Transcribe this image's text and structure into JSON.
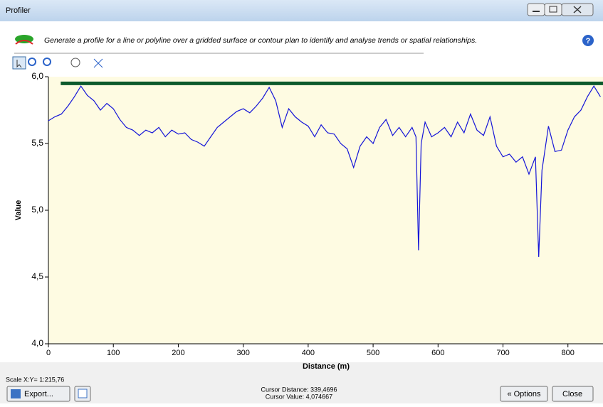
{
  "window": {
    "title": "Profiler"
  },
  "description": "Generate a profile for a line or polyline over a gridded surface or contour plan to identify and analyse trends or spatial relationships.",
  "chart_data": {
    "type": "line",
    "xlabel": "Distance (m)",
    "ylabel": "Value",
    "x": [
      0,
      10,
      20,
      30,
      40,
      50,
      60,
      70,
      80,
      90,
      100,
      110,
      120,
      130,
      140,
      150,
      160,
      170,
      180,
      190,
      200,
      210,
      220,
      230,
      240,
      250,
      260,
      270,
      280,
      290,
      300,
      310,
      320,
      330,
      340,
      350,
      360,
      370,
      380,
      390,
      400,
      410,
      420,
      430,
      440,
      450,
      460,
      470,
      480,
      490,
      500,
      510,
      520,
      530,
      540,
      550,
      560,
      566,
      570,
      574,
      580,
      590,
      600,
      610,
      620,
      630,
      640,
      650,
      660,
      670,
      680,
      690,
      700,
      710,
      720,
      730,
      740,
      750,
      755,
      760,
      770,
      780,
      790,
      800,
      810,
      820,
      830,
      840,
      850
    ],
    "values": [
      5.67,
      5.7,
      5.72,
      5.78,
      5.85,
      5.93,
      5.86,
      5.82,
      5.75,
      5.8,
      5.76,
      5.68,
      5.62,
      5.6,
      5.56,
      5.6,
      5.58,
      5.62,
      5.55,
      5.6,
      5.57,
      5.58,
      5.53,
      5.51,
      5.48,
      5.55,
      5.62,
      5.66,
      5.7,
      5.74,
      5.76,
      5.73,
      5.78,
      5.84,
      5.92,
      5.82,
      5.62,
      5.76,
      5.7,
      5.66,
      5.63,
      5.55,
      5.64,
      5.58,
      5.57,
      5.5,
      5.46,
      5.32,
      5.48,
      5.55,
      5.5,
      5.62,
      5.68,
      5.56,
      5.62,
      5.55,
      5.62,
      5.55,
      4.7,
      5.5,
      5.66,
      5.55,
      5.58,
      5.62,
      5.55,
      5.66,
      5.58,
      5.72,
      5.6,
      5.56,
      5.7,
      5.48,
      5.4,
      5.42,
      5.36,
      5.4,
      5.27,
      5.4,
      4.65,
      5.3,
      5.63,
      5.44,
      5.45,
      5.6,
      5.7,
      5.75,
      5.85,
      5.93,
      5.85
    ],
    "color": "#1515d8",
    "reference_line": {
      "y": 5.95,
      "x": [
        19,
        854
      ],
      "color": "#0d5a2c"
    },
    "xlim": [
      0,
      854
    ],
    "ylim": [
      4,
      6
    ],
    "xticks": [
      0,
      100,
      200,
      300,
      400,
      500,
      600,
      700,
      800
    ],
    "yticks": [
      {
        "value": 4,
        "label": "4,0"
      },
      {
        "value": 4.5,
        "label": "4,5"
      },
      {
        "value": 5,
        "label": "5,0"
      },
      {
        "value": 5.5,
        "label": "5,5"
      },
      {
        "value": 6,
        "label": "6,0"
      }
    ],
    "background": "#fefbe2"
  },
  "footer": {
    "scale": "Scale X:Y= 1:215,76",
    "export": "Export...",
    "cursor_distance": "Cursor Distance: 339,4696",
    "cursor_value": "Cursor Value: 4,074667",
    "options": "« Options",
    "close": "Close"
  }
}
